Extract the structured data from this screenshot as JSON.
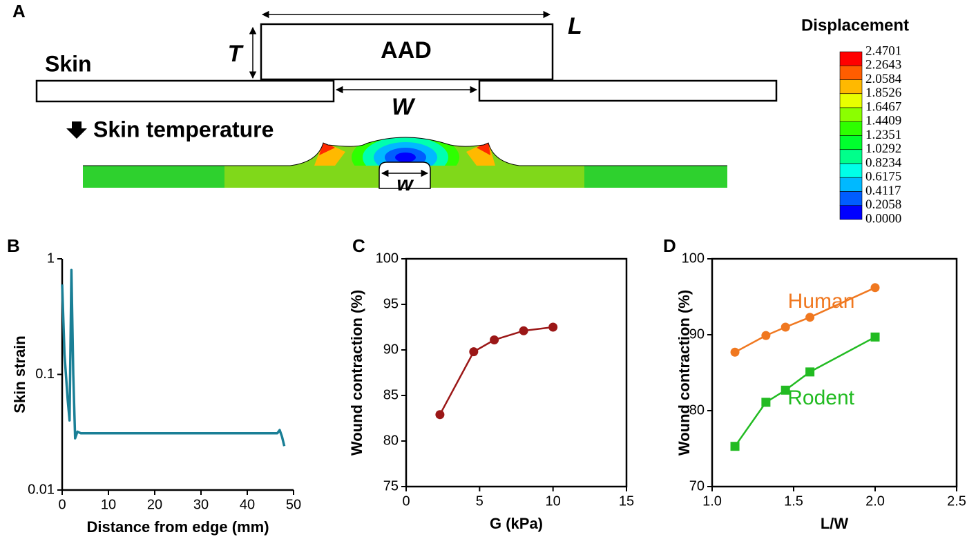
{
  "diagram": {
    "panel": "A",
    "device": "AAD",
    "skin": "Skin",
    "thickness": "T",
    "length": "L",
    "gap": "W",
    "wound": "w",
    "caption": "Skin temperature",
    "colorbar": {
      "title": "Displacement",
      "labels": [
        "2.4701",
        "2.2643",
        "2.0584",
        "1.8526",
        "1.6467",
        "1.4409",
        "1.2351",
        "1.0292",
        "0.8234",
        "0.6175",
        "0.4117",
        "0.2058",
        "0.0000"
      ],
      "colors": [
        "#ff0000",
        "#ff5d00",
        "#ffb900",
        "#e8ff00",
        "#8bff00",
        "#2eff00",
        "#00ff2e",
        "#00ff8b",
        "#00ffe8",
        "#00b9ff",
        "#005dff",
        "#0000ff"
      ]
    }
  },
  "chart_data": [
    {
      "type": "line",
      "panel": "B",
      "y_label": "Skin strain",
      "x_label": "Distance from edge (mm)",
      "log_y": true,
      "xlim": [
        0,
        50
      ],
      "xticks": [
        0,
        10,
        20,
        30,
        40,
        50
      ],
      "ylim": [
        0.01,
        1
      ],
      "yticks": [
        0.01,
        0.1,
        1
      ],
      "x": [
        0,
        0.5,
        1.2,
        1.6,
        2.0,
        2.4,
        2.8,
        3.3,
        4,
        10,
        20,
        30,
        40,
        46.5,
        47,
        47.5,
        48
      ],
      "series": [
        {
          "color": "#1a7f96",
          "values": [
            0.6,
            0.15,
            0.06,
            0.04,
            0.8,
            0.1,
            0.028,
            0.032,
            0.031,
            0.031,
            0.031,
            0.031,
            0.031,
            0.031,
            0.033,
            0.029,
            0.024
          ]
        }
      ]
    },
    {
      "type": "line",
      "panel": "C",
      "y_label": "Wound contraction (%)",
      "x_label": "G (kPa)",
      "xlim": [
        0,
        15
      ],
      "xticks": [
        0,
        5,
        10,
        15
      ],
      "ylim": [
        75,
        100
      ],
      "yticks": [
        75,
        80,
        85,
        90,
        95,
        100
      ],
      "x": [
        2.3,
        4.6,
        6,
        8,
        10
      ],
      "series": [
        {
          "color": "#9b1717",
          "marker": "circle",
          "values": [
            82.9,
            89.8,
            91.1,
            92.1,
            92.5
          ]
        }
      ]
    },
    {
      "type": "line",
      "panel": "D",
      "y_label": "Wound contraction (%)",
      "x_label": "L/W",
      "xlim": [
        1.0,
        2.5
      ],
      "xticks": [
        {
          "value": 1.0,
          "label": "1.0"
        },
        {
          "value": 1.5,
          "label": "1.5"
        },
        {
          "value": 2.0,
          "label": "2.0"
        },
        {
          "value": 2.5,
          "label": "2.5"
        }
      ],
      "ylim": [
        70,
        100
      ],
      "yticks": [
        70,
        80,
        90,
        100
      ],
      "x": [
        1.14,
        1.33,
        1.45,
        1.6,
        2.0
      ],
      "series": [
        {
          "name": "Human",
          "color": "#f07820",
          "marker": "circle",
          "values": [
            87.7,
            89.9,
            91.0,
            92.3,
            96.2
          ]
        },
        {
          "name": "Rodent",
          "color": "#22bb22",
          "marker": "square",
          "values": [
            75.3,
            81.1,
            82.7,
            85.1,
            89.7
          ]
        }
      ]
    }
  ]
}
